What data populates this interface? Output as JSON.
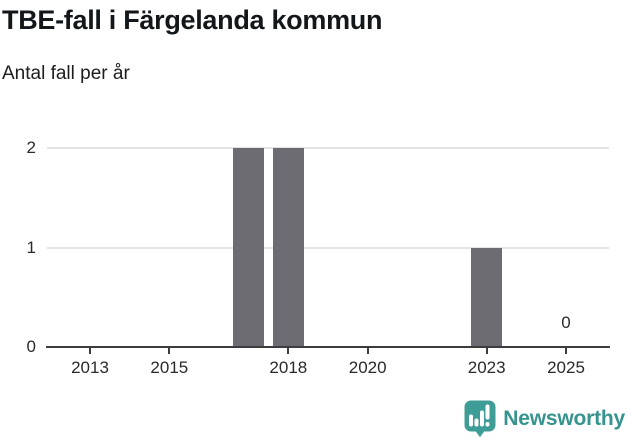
{
  "chart_data": {
    "type": "bar",
    "title": "TBE-fall i Färgelanda kommun",
    "subtitle": "Antal fall per år",
    "categories": [
      2012,
      2013,
      2014,
      2015,
      2016,
      2017,
      2018,
      2019,
      2020,
      2021,
      2022,
      2023,
      2024,
      2025
    ],
    "values": [
      0,
      0,
      0,
      0,
      0,
      2,
      2,
      0,
      0,
      0,
      0,
      1,
      0,
      0
    ],
    "x_ticks": [
      2013,
      2015,
      2018,
      2020,
      2023,
      2025
    ],
    "y_ticks": [
      0,
      1,
      2
    ],
    "ylim": [
      0,
      2
    ],
    "xlabel": "",
    "ylabel": "Antal fall per år",
    "grid": true,
    "legend": "none",
    "annotations": [
      {
        "x": 2025,
        "y": 0,
        "text": "0"
      }
    ],
    "bar_color": "#6d6c72",
    "gridline_color": "#e4e4e4",
    "axis_color": "#3c3c3c"
  },
  "footer": {
    "brand_label": "Newsworthy",
    "brand_color": "#37938e",
    "icon_color": "#3f9d97",
    "icon": "newsworthy-speech-bubble-bar-chart-icon"
  }
}
